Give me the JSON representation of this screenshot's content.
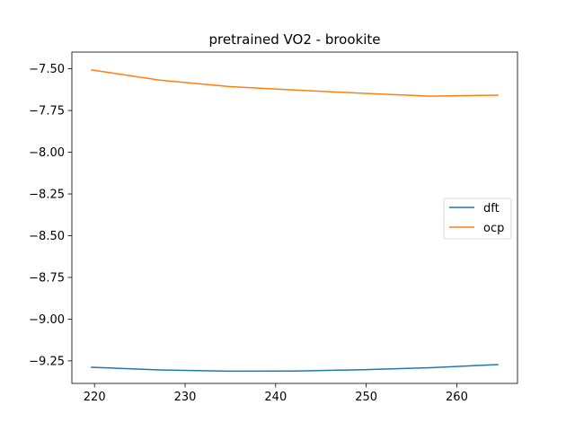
{
  "chart_data": {
    "type": "line",
    "title": "pretrained VO2 - brookite",
    "xlabel": "",
    "ylabel": "",
    "xlim": [
      217.5,
      266.7
    ],
    "ylim": [
      -9.385,
      -7.4
    ],
    "xticks": [
      220,
      230,
      240,
      250,
      260
    ],
    "yticks": [
      -7.5,
      -7.75,
      -8.0,
      -8.25,
      -8.5,
      -8.75,
      -9.0,
      -9.25
    ],
    "xtick_labels": [
      "220",
      "230",
      "240",
      "250",
      "260"
    ],
    "ytick_labels": [
      "−7.50",
      "−7.75",
      "−8.00",
      "−8.25",
      "−8.50",
      "−8.75",
      "−9.00",
      "−9.25"
    ],
    "grid": false,
    "legend_position": "center-right",
    "series": [
      {
        "name": "dft",
        "color": "#1f77b4",
        "x": [
          219.6,
          227.2,
          234.7,
          242.1,
          249.6,
          257.1,
          264.6
        ],
        "y": [
          -9.288,
          -9.304,
          -9.312,
          -9.311,
          -9.303,
          -9.291,
          -9.272
        ]
      },
      {
        "name": "ocp",
        "color": "#ff7f0e",
        "x": [
          219.6,
          227.2,
          234.7,
          242.1,
          249.6,
          257.1,
          264.6
        ],
        "y": [
          -7.506,
          -7.568,
          -7.606,
          -7.627,
          -7.647,
          -7.664,
          -7.658
        ]
      }
    ]
  }
}
